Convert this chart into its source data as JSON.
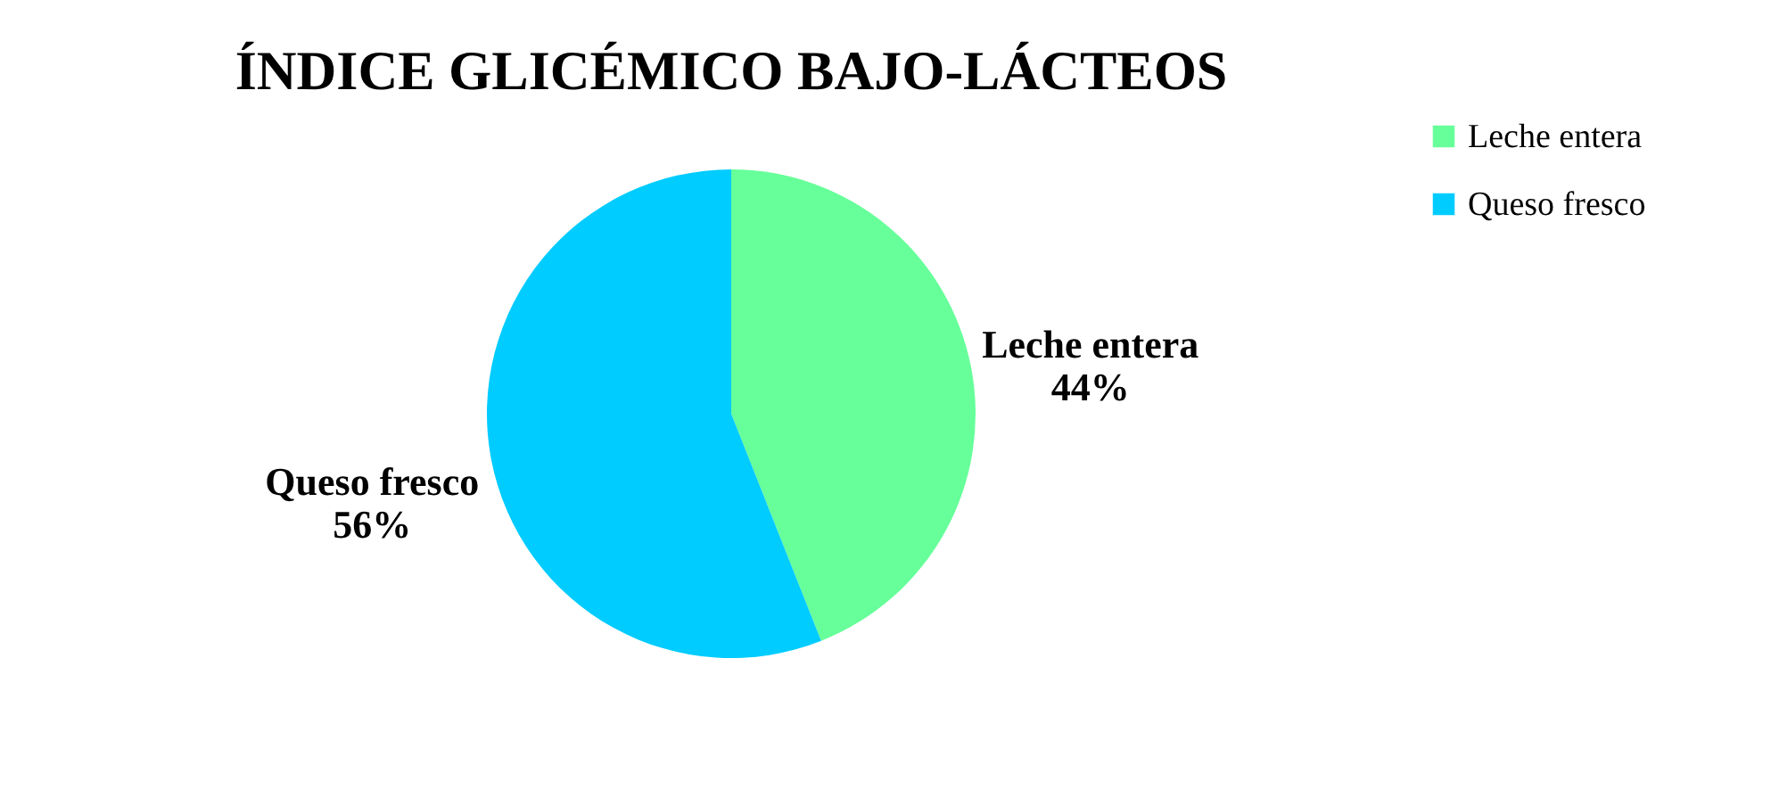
{
  "chart_data": {
    "type": "pie",
    "title": "ÍNDICE GLICÉMICO BAJO-LÁCTEOS",
    "categories": [
      "Leche entera",
      "Queso fresco"
    ],
    "values": [
      44,
      56
    ],
    "colors": [
      "#66ff99",
      "#00ccff"
    ],
    "value_labels": [
      "44%",
      "56%"
    ],
    "legend": "right"
  }
}
